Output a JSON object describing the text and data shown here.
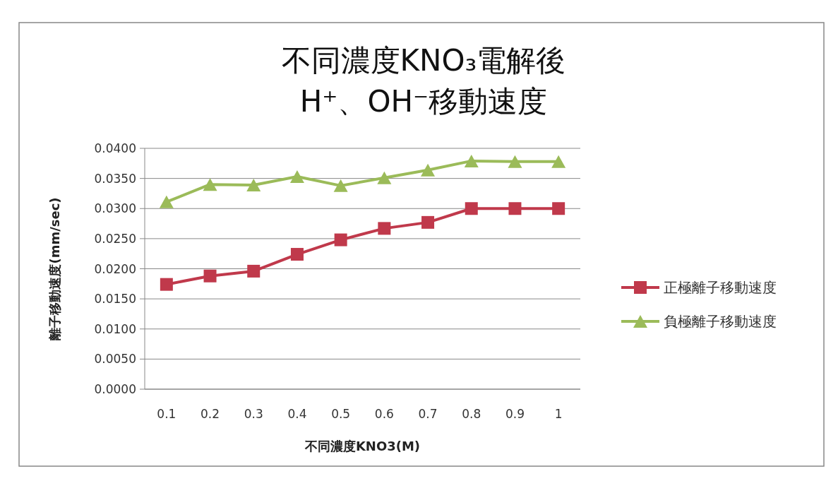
{
  "chart_data": {
    "type": "line",
    "title": "不同濃度KNO₃電解後\nH⁺、OH⁻移動速度",
    "xlabel": "不同濃度KNO3(M)",
    "ylabel": "離子移動速度(mm/sec)",
    "categories": [
      "0.1",
      "0.2",
      "0.3",
      "0.4",
      "0.5",
      "0.6",
      "0.7",
      "0.8",
      "0.9",
      "1"
    ],
    "series": [
      {
        "name": "正極離子移動速度",
        "color": "#c0394b",
        "marker": "square",
        "values": [
          0.0174,
          0.0188,
          0.0196,
          0.0224,
          0.0248,
          0.0267,
          0.0277,
          0.03,
          0.03,
          0.03
        ]
      },
      {
        "name": "負極離子移動速度",
        "color": "#9bbb59",
        "marker": "triangle",
        "values": [
          0.0311,
          0.034,
          0.0339,
          0.0353,
          0.0338,
          0.0351,
          0.0364,
          0.0379,
          0.0378,
          0.0378
        ]
      }
    ],
    "ylim": [
      0,
      0.04
    ],
    "yticks": [
      {
        "value": 0,
        "label": "0.0000"
      },
      {
        "value": 0.005,
        "label": "0.0050"
      },
      {
        "value": 0.01,
        "label": "0.0100"
      },
      {
        "value": 0.015,
        "label": "0.0150"
      },
      {
        "value": 0.02,
        "label": "0.0200"
      },
      {
        "value": 0.025,
        "label": "0.0250"
      },
      {
        "value": 0.03,
        "label": "0.0300"
      },
      {
        "value": 0.035,
        "label": "0.0350"
      },
      {
        "value": 0.04,
        "label": "0.0400"
      }
    ],
    "grid": "y",
    "legend": "right",
    "line_style": "solid"
  }
}
